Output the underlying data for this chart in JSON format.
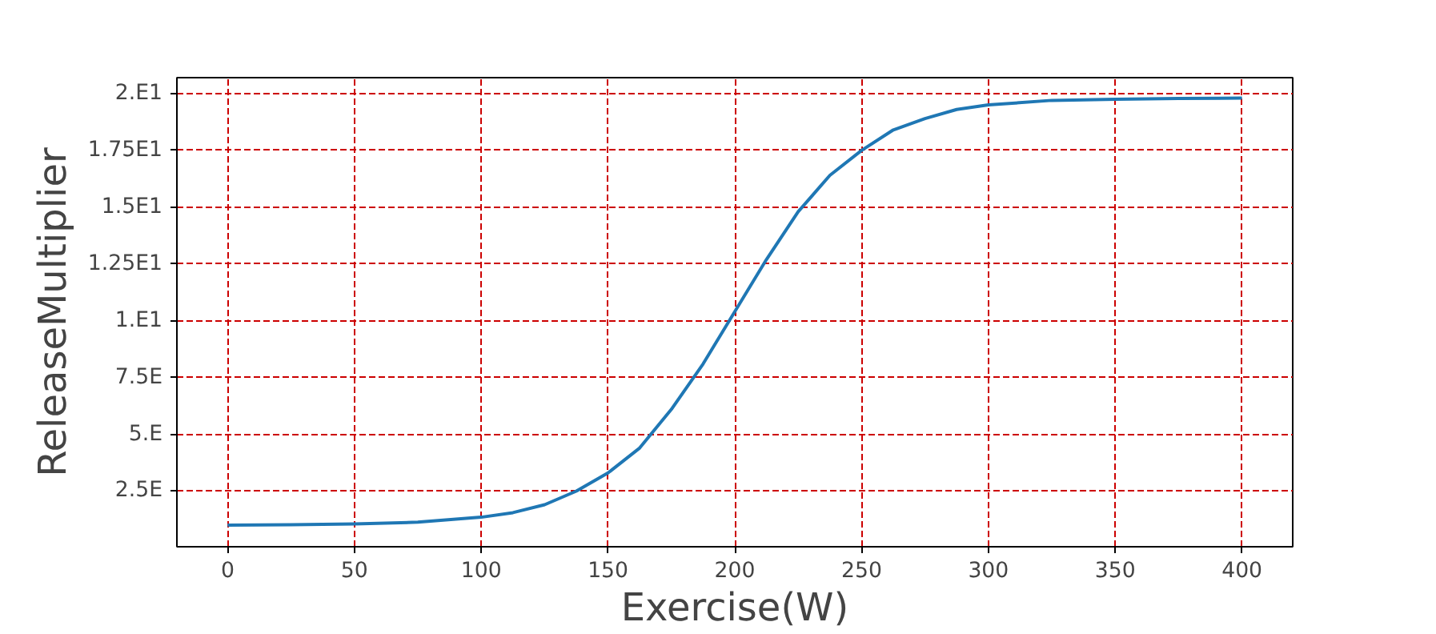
{
  "chart_data": {
    "type": "line",
    "xlabel": "Exercise(W)",
    "ylabel": "ReleaseMultiplier",
    "x": [
      0,
      25,
      50,
      75,
      100,
      112.5,
      125,
      137.5,
      150,
      162.5,
      175,
      187.5,
      200,
      212.5,
      225,
      237.5,
      250,
      262.5,
      275,
      287.5,
      300,
      325,
      350,
      375,
      400
    ],
    "series": [
      {
        "color": "#1f77b4",
        "values": [
          1.0,
          1.02,
          1.05,
          1.13,
          1.35,
          1.55,
          1.9,
          2.5,
          3.3,
          4.4,
          6.1,
          8.1,
          10.4,
          12.7,
          14.8,
          16.4,
          17.5,
          18.4,
          18.9,
          19.3,
          19.5,
          19.7,
          19.75,
          19.78,
          19.8
        ]
      }
    ],
    "xlim": [
      -20,
      420
    ],
    "ylim": [
      0.05,
      20.7
    ],
    "xticks": [
      0,
      50,
      100,
      150,
      200,
      250,
      300,
      350,
      400
    ],
    "yticks": [
      {
        "value": 2.5,
        "label": "2.5E"
      },
      {
        "value": 5,
        "label": "5.E"
      },
      {
        "value": 7.5,
        "label": "7.5E"
      },
      {
        "value": 10,
        "label": "1.E1"
      },
      {
        "value": 12.5,
        "label": "1.25E1"
      },
      {
        "value": 15,
        "label": "1.5E1"
      },
      {
        "value": 17.5,
        "label": "1.75E1"
      },
      {
        "value": 20,
        "label": "2.E1"
      }
    ],
    "grid": true
  }
}
